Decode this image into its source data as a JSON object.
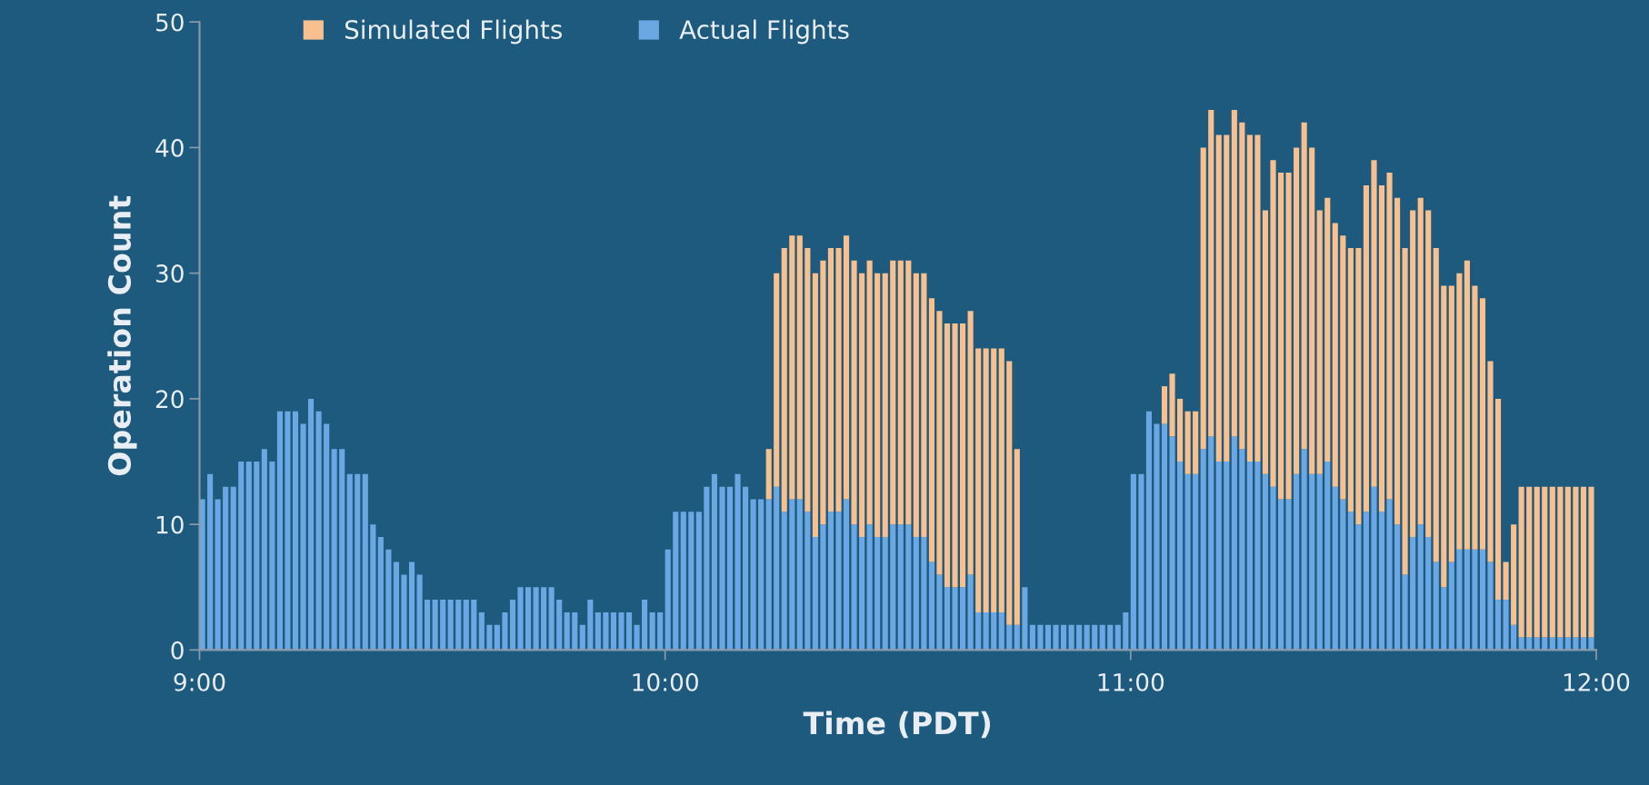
{
  "chart_data": {
    "type": "bar",
    "stacked": true,
    "xlabel": "Time (PDT)",
    "ylabel": "Operation Count",
    "x": [
      9,
      9.0167,
      9.0333,
      9.05,
      9.0667,
      9.0833,
      9.1,
      9.1167,
      9.1333,
      9.15,
      9.1667,
      9.1833,
      9.2,
      9.2167,
      9.2333,
      9.25,
      9.2667,
      9.2833,
      9.3,
      9.3167,
      9.3333,
      9.35,
      9.3667,
      9.3833,
      9.4,
      9.4167,
      9.4333,
      9.45,
      9.4667,
      9.4833,
      9.5,
      9.5167,
      9.5333,
      9.55,
      9.5667,
      9.5833,
      9.6,
      9.6167,
      9.6333,
      9.65,
      9.6667,
      9.6833,
      9.7,
      9.7167,
      9.7333,
      9.75,
      9.7667,
      9.7833,
      9.8,
      9.8167,
      9.8333,
      9.85,
      9.8667,
      9.8833,
      9.9,
      9.9167,
      9.9333,
      9.95,
      9.9667,
      9.9833,
      10,
      10.0167,
      10.0333,
      10.05,
      10.0667,
      10.0833,
      10.1,
      10.1167,
      10.1333,
      10.15,
      10.1667,
      10.1833,
      10.2,
      10.2167,
      10.2333,
      10.25,
      10.2667,
      10.2833,
      10.3,
      10.3167,
      10.3333,
      10.35,
      10.3667,
      10.3833,
      10.4,
      10.4167,
      10.4333,
      10.45,
      10.4667,
      10.4833,
      10.5,
      10.5167,
      10.5333,
      10.55,
      10.5667,
      10.5833,
      10.6,
      10.6167,
      10.6333,
      10.65,
      10.6667,
      10.6833,
      10.7,
      10.7167,
      10.7333,
      10.75,
      10.7667,
      10.7833,
      10.8,
      10.8167,
      10.8333,
      10.85,
      10.8667,
      10.8833,
      10.9,
      10.9167,
      10.9333,
      10.95,
      10.9667,
      10.9833,
      11,
      11.0167,
      11.0333,
      11.05,
      11.0667,
      11.0833,
      11.1,
      11.1167,
      11.1333,
      11.15,
      11.1667,
      11.1833,
      11.2,
      11.2167,
      11.2333,
      11.25,
      11.2667,
      11.2833,
      11.3,
      11.3167,
      11.3333,
      11.35,
      11.3667,
      11.3833,
      11.4,
      11.4167,
      11.4333,
      11.45,
      11.4667,
      11.4833,
      11.5,
      11.5167,
      11.5333,
      11.55,
      11.5667,
      11.5833,
      11.6,
      11.6167,
      11.6333,
      11.65,
      11.6667,
      11.6833,
      11.7,
      11.7167,
      11.7333,
      11.75,
      11.7667,
      11.7833,
      11.8,
      11.8167,
      11.8333,
      11.85,
      11.8667,
      11.8833,
      11.9,
      11.9167,
      11.9333,
      11.95,
      11.9667,
      11.9833
    ],
    "series": [
      {
        "name": "Actual Flights",
        "color": "#6ba7e3",
        "values": [
          12,
          14,
          12,
          13,
          13,
          15,
          15,
          15,
          16,
          15,
          19,
          19,
          19,
          18,
          20,
          19,
          18,
          16,
          16,
          14,
          14,
          14,
          10,
          9,
          8,
          7,
          6,
          7,
          6,
          4,
          4,
          4,
          4,
          4,
          4,
          4,
          3,
          2,
          2,
          3,
          4,
          5,
          5,
          5,
          5,
          5,
          4,
          3,
          3,
          2,
          4,
          3,
          3,
          3,
          3,
          3,
          2,
          4,
          3,
          3,
          8,
          11,
          11,
          11,
          11,
          13,
          14,
          13,
          13,
          14,
          13,
          12,
          12,
          12,
          13,
          11,
          12,
          12,
          11,
          9,
          10,
          11,
          11,
          12,
          10,
          9,
          10,
          9,
          9,
          10,
          10,
          10,
          9,
          9,
          7,
          6,
          5,
          5,
          5,
          6,
          3,
          3,
          3,
          3,
          2,
          2,
          5,
          2,
          2,
          2,
          2,
          2,
          2,
          2,
          2,
          2,
          2,
          2,
          2,
          3,
          14,
          14,
          19,
          18,
          18,
          17,
          15,
          14,
          14,
          16,
          17,
          15,
          15,
          17,
          16,
          15,
          15,
          14,
          13,
          12,
          12,
          14,
          16,
          14,
          14,
          15,
          13,
          12,
          11,
          10,
          11,
          13,
          11,
          12,
          10,
          6,
          9,
          10,
          9,
          7,
          5,
          7,
          8,
          8,
          8,
          8,
          7,
          4,
          4,
          2,
          1,
          1,
          1,
          1,
          1,
          1,
          1,
          1,
          1,
          1
        ]
      },
      {
        "name": "Simulated Flights",
        "color": "#f9c08f",
        "values": [
          0,
          0,
          0,
          0,
          0,
          0,
          0,
          0,
          0,
          0,
          0,
          0,
          0,
          0,
          0,
          0,
          0,
          0,
          0,
          0,
          0,
          0,
          0,
          0,
          0,
          0,
          0,
          0,
          0,
          0,
          0,
          0,
          0,
          0,
          0,
          0,
          0,
          0,
          0,
          0,
          0,
          0,
          0,
          0,
          0,
          0,
          0,
          0,
          0,
          0,
          0,
          0,
          0,
          0,
          0,
          0,
          0,
          0,
          0,
          0,
          0,
          0,
          0,
          0,
          0,
          0,
          0,
          0,
          0,
          0,
          0,
          0,
          0,
          4,
          17,
          21,
          21,
          21,
          21,
          21,
          21,
          21,
          21,
          21,
          21,
          21,
          21,
          21,
          21,
          21,
          21,
          21,
          21,
          21,
          21,
          21,
          21,
          21,
          21,
          21,
          21,
          21,
          21,
          21,
          21,
          14,
          0,
          0,
          0,
          0,
          0,
          0,
          0,
          0,
          0,
          0,
          0,
          0,
          0,
          0,
          0,
          0,
          0,
          0,
          3,
          5,
          5,
          5,
          5,
          24,
          26,
          26,
          26,
          26,
          26,
          26,
          26,
          21,
          26,
          26,
          26,
          26,
          26,
          26,
          21,
          21,
          21,
          21,
          21,
          22,
          26,
          26,
          26,
          26,
          26,
          26,
          26,
          26,
          26,
          25,
          24,
          22,
          22,
          23,
          21,
          20,
          16,
          16,
          3,
          8,
          12,
          12,
          12,
          12,
          12,
          12,
          12,
          12,
          12,
          12
        ]
      }
    ],
    "xlim": [
      9,
      12
    ],
    "xticks": [
      {
        "value": 9,
        "label": "9:00"
      },
      {
        "value": 10,
        "label": "10:00"
      },
      {
        "value": 11,
        "label": "11:00"
      },
      {
        "value": 12,
        "label": "12:00"
      }
    ],
    "ylim": [
      0,
      50
    ],
    "yticks": [
      0,
      10,
      20,
      30,
      40,
      50
    ],
    "grid": false,
    "legend": "top"
  }
}
